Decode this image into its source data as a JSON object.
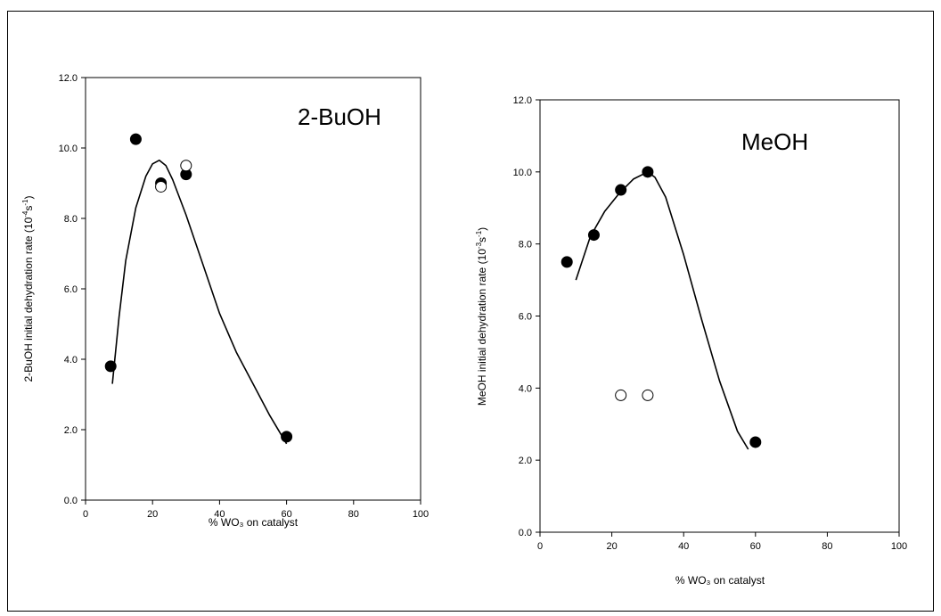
{
  "chart_data": [
    {
      "type": "scatter",
      "annotation": "2-BuOH",
      "xlabel": "% WO₃ on catalyst",
      "ylabel_main": "2-BuOH initial dehydration rate (10",
      "ylabel_sup": "-4",
      "ylabel_mid": "s",
      "ylabel_sup2": "-1",
      "ylabel_end": ")",
      "xlim": [
        0,
        100
      ],
      "ylim": [
        0,
        12
      ],
      "xticks": [
        0,
        20,
        40,
        60,
        80,
        100
      ],
      "xtick_labels": [
        "0",
        "20",
        "40",
        "60",
        "80",
        "100"
      ],
      "yticks": [
        0,
        2,
        4,
        6,
        8,
        10,
        12
      ],
      "ytick_labels": [
        "0.0",
        "2.0",
        "4.0",
        "6.0",
        "8.0",
        "10.0",
        "12.0"
      ],
      "series": [
        {
          "marker": "filled-circle",
          "x": [
            7.5,
            15,
            22.5,
            30,
            60
          ],
          "y": [
            3.8,
            10.25,
            9.0,
            9.25,
            1.8
          ]
        },
        {
          "marker": "open-circle",
          "x": [
            22.5,
            30
          ],
          "y": [
            8.9,
            9.5
          ]
        },
        {
          "marker": "line",
          "x": [
            8,
            10,
            12,
            15,
            18,
            20,
            22,
            24,
            26,
            30,
            35,
            40,
            45,
            50,
            55,
            60
          ],
          "y": [
            3.3,
            5.2,
            6.8,
            8.3,
            9.2,
            9.55,
            9.65,
            9.5,
            9.1,
            8.1,
            6.7,
            5.3,
            4.2,
            3.3,
            2.4,
            1.6
          ]
        }
      ]
    },
    {
      "type": "scatter",
      "annotation": "MeOH",
      "xlabel": "% WO₃ on catalyst",
      "ylabel_main": "MeOH initial dehydration rate (10",
      "ylabel_sup": "-3",
      "ylabel_mid": "s",
      "ylabel_sup2": "-1",
      "ylabel_end": ")",
      "xlim": [
        0,
        100
      ],
      "ylim": [
        0,
        12
      ],
      "xticks": [
        0,
        20,
        40,
        60,
        80,
        100
      ],
      "xtick_labels": [
        "0",
        "20",
        "40",
        "60",
        "80",
        "100"
      ],
      "yticks": [
        0,
        2,
        4,
        6,
        8,
        10,
        12
      ],
      "ytick_labels": [
        "0.0",
        "2.0",
        "4.0",
        "6.0",
        "8.0",
        "10.0",
        "12.0"
      ],
      "series": [
        {
          "marker": "filled-circle",
          "x": [
            7.5,
            15,
            22.5,
            30,
            60
          ],
          "y": [
            7.5,
            8.25,
            9.5,
            10.0,
            2.5
          ]
        },
        {
          "marker": "open-circle",
          "x": [
            22.5,
            30
          ],
          "y": [
            3.8,
            3.8
          ]
        },
        {
          "marker": "line",
          "x": [
            10,
            14,
            18,
            22,
            26,
            30,
            32,
            35,
            40,
            45,
            50,
            55,
            58
          ],
          "y": [
            7.0,
            8.2,
            8.9,
            9.4,
            9.8,
            10.0,
            9.85,
            9.3,
            7.7,
            5.9,
            4.2,
            2.8,
            2.3
          ]
        }
      ]
    }
  ]
}
